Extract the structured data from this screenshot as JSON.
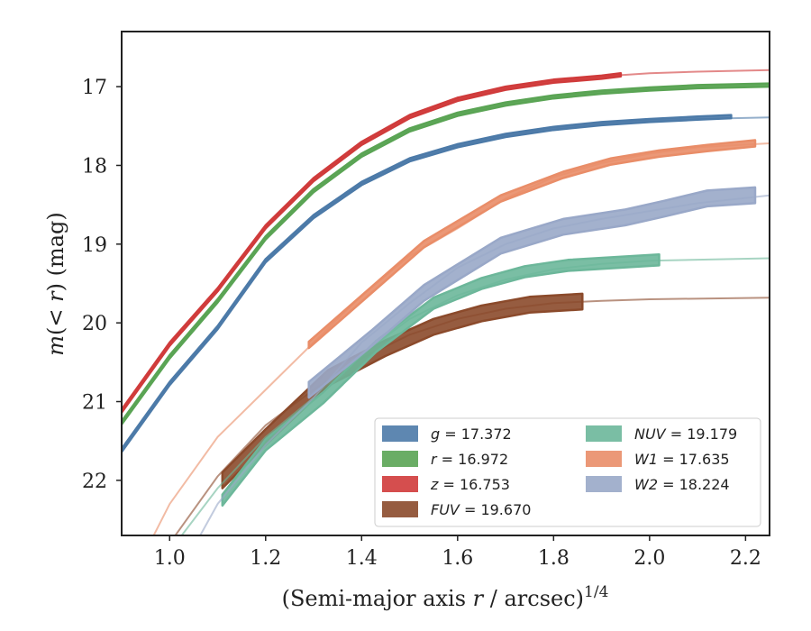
{
  "chart_data": {
    "type": "line",
    "xlabel": "(Semi-major axis r / arcsec)^{1/4}",
    "xlabel_parts": {
      "main": "(Semi-major axis ",
      "var": "r",
      "rest": " / arcsec)",
      "sup": "1/4"
    },
    "ylabel": "m(< r) (mag)",
    "ylabel_parts": {
      "var1": "m",
      "open": "(",
      "op": "< ",
      "var2": "r",
      "close": ")",
      "unit": " (mag)"
    },
    "xlim": [
      0.9,
      2.25
    ],
    "ylim": [
      22.7,
      16.3
    ],
    "y_inverted": true,
    "xticks": [
      1.0,
      1.2,
      1.4,
      1.6,
      1.8,
      2.0,
      2.2
    ],
    "xtick_labels": [
      "1.0",
      "1.2",
      "1.4",
      "1.6",
      "1.8",
      "2.0",
      "2.2"
    ],
    "yticks": [
      17,
      18,
      19,
      20,
      21,
      22
    ],
    "ytick_labels": [
      "17",
      "18",
      "19",
      "20",
      "21",
      "22"
    ],
    "grid": false,
    "legend_position": "lower-right",
    "series": [
      {
        "name": "g = 17.372",
        "key": "g",
        "legend_var": "g",
        "legend_val": " = 17.372",
        "color": "#4c7aa8",
        "model": [
          [
            0.9,
            21.62
          ],
          [
            1.0,
            20.77
          ],
          [
            1.1,
            20.06
          ],
          [
            1.2,
            19.21
          ],
          [
            1.3,
            18.65
          ],
          [
            1.4,
            18.23
          ],
          [
            1.5,
            17.93
          ],
          [
            1.6,
            17.75
          ],
          [
            1.7,
            17.62
          ],
          [
            1.8,
            17.53
          ],
          [
            1.9,
            17.47
          ],
          [
            2.0,
            17.43
          ],
          [
            2.1,
            17.41
          ],
          [
            2.25,
            17.39
          ]
        ],
        "data": [
          [
            0.9,
            21.62
          ],
          [
            1.0,
            20.77
          ],
          [
            1.1,
            20.06
          ],
          [
            1.2,
            19.21
          ],
          [
            1.3,
            18.65
          ],
          [
            1.4,
            18.23
          ],
          [
            1.5,
            17.93
          ],
          [
            1.6,
            17.75
          ],
          [
            1.7,
            17.62
          ],
          [
            1.8,
            17.53
          ],
          [
            1.9,
            17.47
          ],
          [
            2.0,
            17.43
          ],
          [
            2.1,
            17.4
          ],
          [
            2.17,
            17.38
          ]
        ],
        "err": 0.02
      },
      {
        "name": "r = 16.972",
        "key": "r",
        "legend_var": "r",
        "legend_val": " = 16.972",
        "color": "#5aa454",
        "model": [
          [
            0.9,
            21.27
          ],
          [
            1.0,
            20.43
          ],
          [
            1.1,
            19.72
          ],
          [
            1.2,
            18.92
          ],
          [
            1.3,
            18.32
          ],
          [
            1.4,
            17.87
          ],
          [
            1.5,
            17.55
          ],
          [
            1.6,
            17.35
          ],
          [
            1.7,
            17.22
          ],
          [
            1.8,
            17.13
          ],
          [
            1.9,
            17.07
          ],
          [
            2.0,
            17.03
          ],
          [
            2.1,
            17.01
          ],
          [
            2.25,
            16.99
          ]
        ],
        "data": [
          [
            0.9,
            21.27
          ],
          [
            1.0,
            20.43
          ],
          [
            1.1,
            19.72
          ],
          [
            1.2,
            18.92
          ],
          [
            1.3,
            18.32
          ],
          [
            1.4,
            17.87
          ],
          [
            1.5,
            17.55
          ],
          [
            1.6,
            17.35
          ],
          [
            1.7,
            17.22
          ],
          [
            1.8,
            17.13
          ],
          [
            1.9,
            17.07
          ],
          [
            2.0,
            17.03
          ],
          [
            2.1,
            17.0
          ],
          [
            2.25,
            16.98
          ]
        ],
        "err": 0.02
      },
      {
        "name": "z = 16.753",
        "key": "z",
        "legend_var": "z",
        "legend_val": " = 16.753",
        "color": "#d03b3b",
        "model": [
          [
            0.9,
            21.12
          ],
          [
            1.0,
            20.27
          ],
          [
            1.1,
            19.58
          ],
          [
            1.2,
            18.78
          ],
          [
            1.3,
            18.18
          ],
          [
            1.4,
            17.72
          ],
          [
            1.5,
            17.38
          ],
          [
            1.6,
            17.16
          ],
          [
            1.7,
            17.02
          ],
          [
            1.8,
            16.93
          ],
          [
            1.9,
            16.87
          ],
          [
            2.0,
            16.83
          ],
          [
            2.1,
            16.81
          ],
          [
            2.25,
            16.79
          ]
        ],
        "data": [
          [
            0.9,
            21.12
          ],
          [
            1.0,
            20.27
          ],
          [
            1.1,
            19.58
          ],
          [
            1.2,
            18.78
          ],
          [
            1.3,
            18.18
          ],
          [
            1.4,
            17.72
          ],
          [
            1.5,
            17.38
          ],
          [
            1.6,
            17.16
          ],
          [
            1.7,
            17.02
          ],
          [
            1.8,
            16.93
          ],
          [
            1.9,
            16.88
          ],
          [
            1.94,
            16.85
          ]
        ],
        "err": 0.02
      },
      {
        "name": "FUV = 19.670",
        "key": "fuv",
        "legend_var": "FUV",
        "legend_val": " = 19.670",
        "color": "#8b4a2b",
        "model": [
          [
            1.0,
            22.8
          ],
          [
            1.1,
            21.95
          ],
          [
            1.2,
            21.3
          ],
          [
            1.3,
            20.85
          ],
          [
            1.4,
            20.45
          ],
          [
            1.5,
            20.15
          ],
          [
            1.6,
            19.95
          ],
          [
            1.7,
            19.82
          ],
          [
            1.8,
            19.75
          ],
          [
            1.9,
            19.72
          ],
          [
            2.0,
            19.7
          ],
          [
            2.25,
            19.68
          ]
        ],
        "data": [
          [
            1.11,
            22.0
          ],
          [
            1.2,
            21.45
          ],
          [
            1.33,
            20.7
          ],
          [
            1.45,
            20.32
          ],
          [
            1.55,
            20.05
          ],
          [
            1.65,
            19.88
          ],
          [
            1.75,
            19.77
          ],
          [
            1.86,
            19.73
          ]
        ],
        "err": 0.1
      },
      {
        "name": "NUV = 19.179",
        "key": "nuv",
        "legend_var": "NUV",
        "legend_val": " = 19.179",
        "color": "#6cb79a",
        "model": [
          [
            1.0,
            22.9
          ],
          [
            1.1,
            22.1
          ],
          [
            1.2,
            21.45
          ],
          [
            1.3,
            20.95
          ],
          [
            1.4,
            20.4
          ],
          [
            1.5,
            19.95
          ],
          [
            1.6,
            19.65
          ],
          [
            1.7,
            19.45
          ],
          [
            1.8,
            19.32
          ],
          [
            1.9,
            19.25
          ],
          [
            2.0,
            19.21
          ],
          [
            2.25,
            19.18
          ]
        ],
        "data": [
          [
            1.11,
            22.25
          ],
          [
            1.2,
            21.55
          ],
          [
            1.32,
            20.95
          ],
          [
            1.43,
            20.3
          ],
          [
            1.55,
            19.75
          ],
          [
            1.65,
            19.5
          ],
          [
            1.74,
            19.35
          ],
          [
            1.83,
            19.27
          ],
          [
            2.02,
            19.2
          ]
        ],
        "err": 0.07
      },
      {
        "name": "W1 = 17.635",
        "key": "w1",
        "legend_var": "W1",
        "legend_val": " = 17.635",
        "color": "#e98d68",
        "model": [
          [
            0.9,
            23.5
          ],
          [
            1.0,
            22.3
          ],
          [
            1.1,
            21.45
          ],
          [
            1.2,
            20.85
          ],
          [
            1.3,
            20.25
          ],
          [
            1.4,
            19.65
          ],
          [
            1.5,
            19.15
          ],
          [
            1.6,
            18.8
          ],
          [
            1.7,
            18.42
          ],
          [
            1.8,
            18.15
          ],
          [
            1.9,
            17.97
          ],
          [
            2.0,
            17.85
          ],
          [
            2.1,
            17.77
          ],
          [
            2.25,
            17.72
          ]
        ],
        "data": [
          [
            1.29,
            20.28
          ],
          [
            1.53,
            19.0
          ],
          [
            1.69,
            18.42
          ],
          [
            1.82,
            18.12
          ],
          [
            1.92,
            17.95
          ],
          [
            2.02,
            17.85
          ],
          [
            2.12,
            17.78
          ],
          [
            2.22,
            17.72
          ]
        ],
        "err": 0.04
      },
      {
        "name": "W2 = 18.224",
        "key": "w2",
        "legend_var": "W2",
        "legend_val": " = 18.224",
        "color": "#99a8c8",
        "model": [
          [
            1.0,
            23.4
          ],
          [
            1.1,
            22.3
          ],
          [
            1.2,
            21.55
          ],
          [
            1.3,
            20.95
          ],
          [
            1.4,
            20.25
          ],
          [
            1.5,
            19.75
          ],
          [
            1.6,
            19.3
          ],
          [
            1.7,
            19.0
          ],
          [
            1.8,
            18.8
          ],
          [
            1.9,
            18.68
          ],
          [
            2.0,
            18.58
          ],
          [
            2.1,
            18.48
          ],
          [
            2.25,
            18.38
          ]
        ],
        "data": [
          [
            1.29,
            20.85
          ],
          [
            1.42,
            20.2
          ],
          [
            1.53,
            19.62
          ],
          [
            1.69,
            19.02
          ],
          [
            1.82,
            18.78
          ],
          [
            1.95,
            18.66
          ],
          [
            2.03,
            18.55
          ],
          [
            2.12,
            18.42
          ],
          [
            2.22,
            18.38
          ]
        ],
        "err": 0.1
      }
    ]
  }
}
